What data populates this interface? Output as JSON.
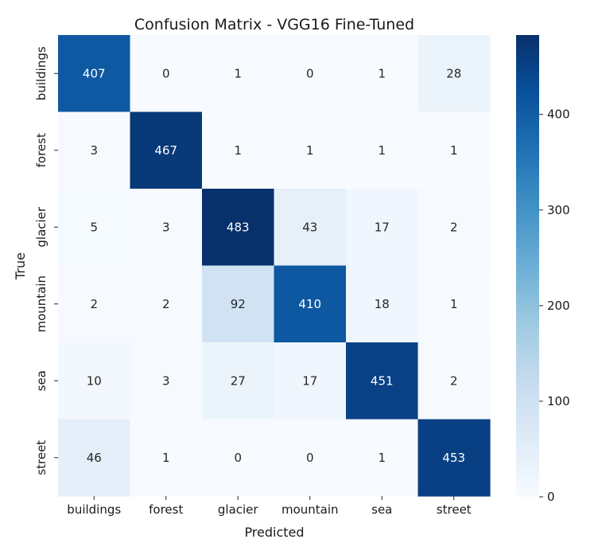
{
  "chart_data": {
    "type": "heatmap",
    "title": "Confusion Matrix - VGG16 Fine-Tuned",
    "xlabel": "Predicted",
    "ylabel": "True",
    "x_categories": [
      "buildings",
      "forest",
      "glacier",
      "mountain",
      "sea",
      "street"
    ],
    "y_categories": [
      "buildings",
      "forest",
      "glacier",
      "mountain",
      "sea",
      "street"
    ],
    "values": [
      [
        407,
        0,
        1,
        0,
        1,
        28
      ],
      [
        3,
        467,
        1,
        1,
        1,
        1
      ],
      [
        5,
        3,
        483,
        43,
        17,
        2
      ],
      [
        2,
        2,
        92,
        410,
        18,
        1
      ],
      [
        10,
        3,
        27,
        17,
        451,
        2
      ],
      [
        46,
        1,
        0,
        0,
        1,
        453
      ]
    ],
    "colorbar": {
      "range": [
        0,
        483
      ],
      "ticks": [
        0,
        100,
        200,
        300,
        400
      ],
      "colormap": "Blues"
    },
    "grid": false,
    "legend": "none"
  }
}
